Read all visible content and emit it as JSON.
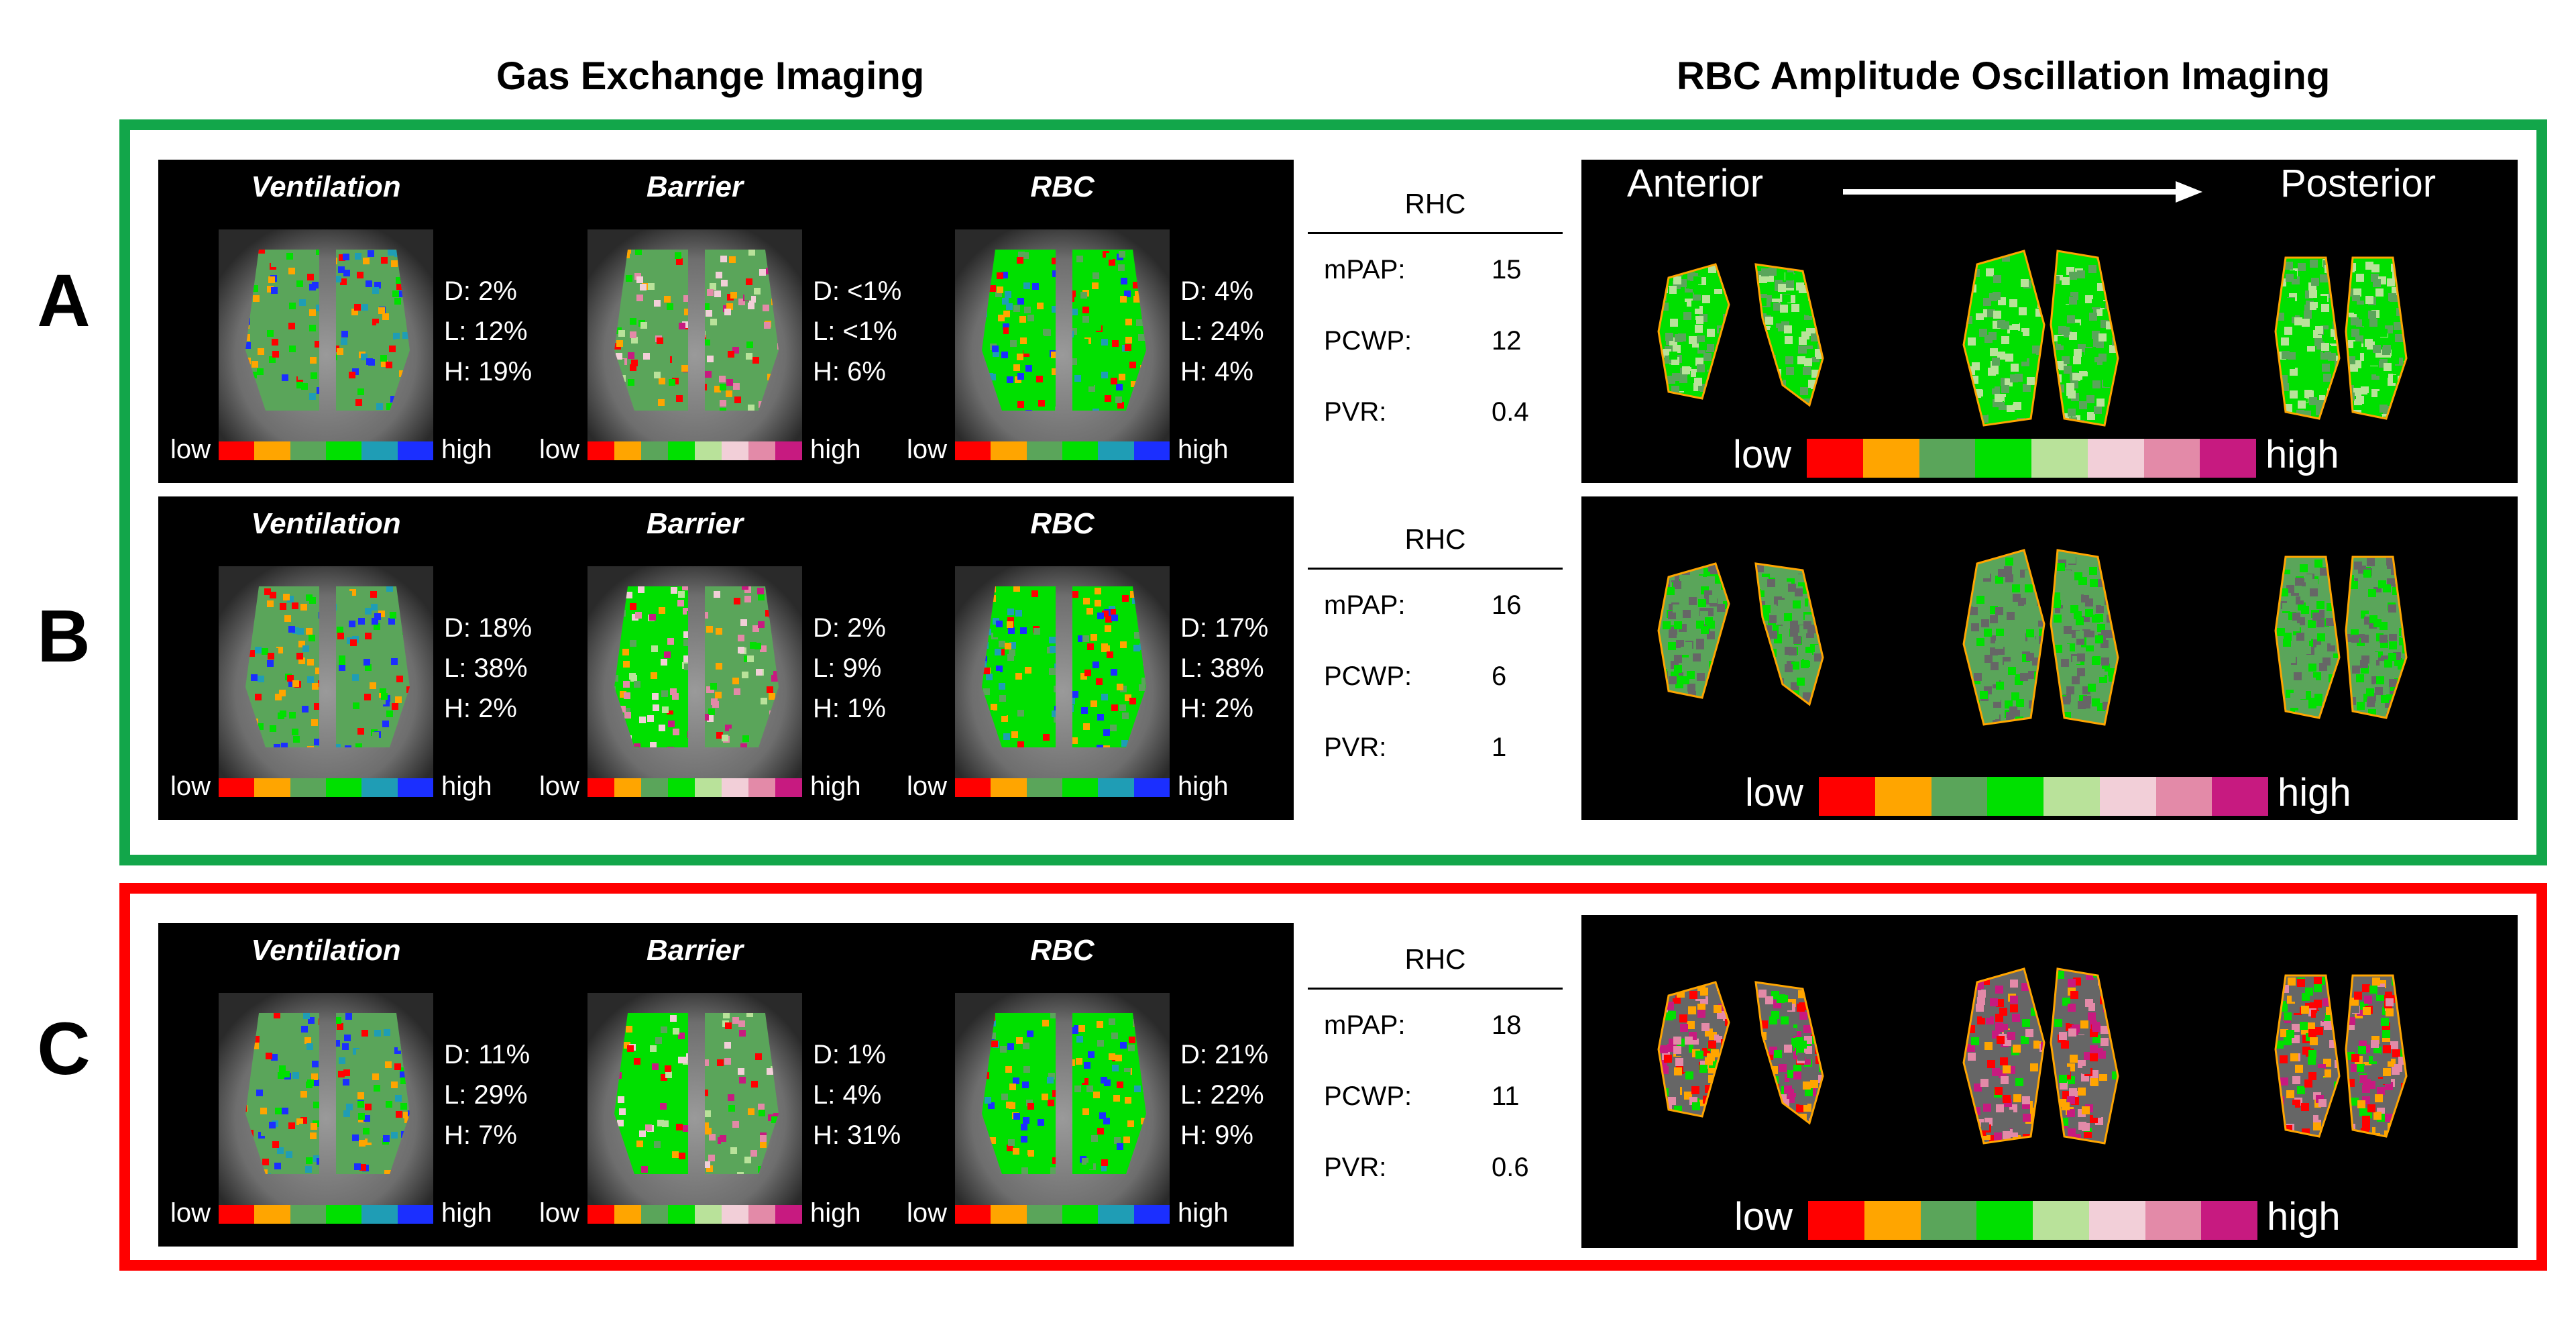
{
  "headers": {
    "left": "Gas Exchange Imaging",
    "right": "RBC Amplitude Oscillation Imaging"
  },
  "frame_colors": {
    "normal": "#12a64a",
    "abnormal": "#ff0000"
  },
  "colormaps": {
    "ventilation": [
      "#ff0000",
      "#ffa500",
      "#5aa55a",
      "#00e000",
      "#1f9db5",
      "#1b2fff"
    ],
    "barrier": [
      "#ff0000",
      "#ffa500",
      "#5aa55a",
      "#00e000",
      "#b9e29a",
      "#f2cfd8",
      "#e38aa8",
      "#c71a80"
    ],
    "rbc": [
      "#ff0000",
      "#ffa500",
      "#5aa55a",
      "#00e000",
      "#1f9db5",
      "#1b2fff"
    ],
    "oscillation": [
      "#ff0000",
      "#ffa500",
      "#5aa55a",
      "#00e000",
      "#b9e29a",
      "#f2cfd8",
      "#e38aa8",
      "#c71a80"
    ]
  },
  "scale": {
    "low": "low",
    "high": "high"
  },
  "direction": {
    "anterior": "Anterior",
    "posterior": "Posterior"
  },
  "rhc_labels": {
    "header": "RHC",
    "mpap": "mPAP:",
    "pcwp": "PCWP:",
    "pvr": "PVR:"
  },
  "rows": [
    {
      "label": "A",
      "maps": [
        {
          "title": "Ventilation",
          "d": "D: 2%",
          "l": "L: 12%",
          "h": "H: 19%"
        },
        {
          "title": "Barrier",
          "d": "D: <1%",
          "l": "L: <1%",
          "h": "H: 6%"
        },
        {
          "title": "RBC",
          "d": "D: 4%",
          "l": "L: 24%",
          "h": "H: 4%"
        }
      ],
      "rhc": {
        "mpap": "15",
        "pcwp": "12",
        "pvr": "0.4"
      }
    },
    {
      "label": "B",
      "maps": [
        {
          "title": "Ventilation",
          "d": "D: 18%",
          "l": "L: 38%",
          "h": "H: 2%"
        },
        {
          "title": "Barrier",
          "d": "D: 2%",
          "l": "L: 9%",
          "h": "H: 1%"
        },
        {
          "title": "RBC",
          "d": "D: 17%",
          "l": "L: 38%",
          "h": "H: 2%"
        }
      ],
      "rhc": {
        "mpap": "16",
        "pcwp": "6",
        "pvr": "1"
      }
    },
    {
      "label": "C",
      "maps": [
        {
          "title": "Ventilation",
          "d": "D: 11%",
          "l": "L: 29%",
          "h": "H: 7%"
        },
        {
          "title": "Barrier",
          "d": "D: 1%",
          "l": "L: 4%",
          "h": "H: 31%"
        },
        {
          "title": "RBC",
          "d": "D: 21%",
          "l": "L: 22%",
          "h": "H: 9%"
        }
      ],
      "rhc": {
        "mpap": "18",
        "pcwp": "11",
        "pvr": "0.6"
      }
    }
  ]
}
